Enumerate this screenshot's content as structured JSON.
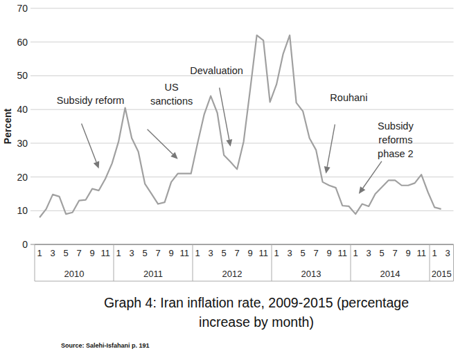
{
  "chart_data": {
    "type": "line",
    "title": [
      "Graph 4: Iran inflation rate, 2009-2015 (percentage",
      "increase by month)"
    ],
    "source": "Source: Salehi-Isfahani p. 191",
    "y_label": "Percent",
    "categories": [
      "1",
      null,
      "3",
      null,
      "5",
      null,
      "7",
      null,
      "9",
      null,
      "11",
      null,
      "1",
      null,
      "3",
      null,
      "5",
      null,
      "7",
      null,
      "9",
      null,
      "11",
      null,
      "1",
      null,
      "3",
      null,
      "5",
      null,
      "7",
      null,
      "9",
      null,
      "11",
      null,
      "1",
      null,
      "3",
      null,
      "5",
      null,
      "7",
      null,
      "9",
      null,
      "11",
      null,
      "1",
      null,
      "3",
      null,
      "5",
      null,
      "7",
      null,
      "9",
      null,
      "11",
      null,
      "1",
      null,
      "3"
    ],
    "year_groups": [
      {
        "label": "2010",
        "count": 12
      },
      {
        "label": "2011",
        "count": 12
      },
      {
        "label": "2012",
        "count": 12
      },
      {
        "label": "2013",
        "count": 12
      },
      {
        "label": "2014",
        "count": 12
      },
      {
        "label": "2015",
        "count": 3
      }
    ],
    "values": [
      8,
      10.5,
      14.8,
      14.2,
      9,
      9.5,
      13,
      13.2,
      16.5,
      16,
      19.5,
      24,
      30.5,
      40.5,
      31.5,
      27.5,
      18,
      15,
      12,
      12.5,
      18.5,
      21,
      21,
      21,
      30,
      38.5,
      44,
      39,
      26.5,
      24.5,
      22.3,
      30.5,
      46,
      62,
      60.5,
      42.2,
      47.5,
      56.5,
      62,
      42,
      39.5,
      31.5,
      28,
      18.5,
      17.5,
      16.8,
      11.5,
      11.3,
      9,
      12,
      11.3,
      15,
      17,
      19,
      19,
      17.5,
      17.5,
      18.2,
      20.7,
      15.5,
      11,
      10.5,
      null
    ],
    "color": "#a0a0a0",
    "ylim": [
      0,
      70
    ],
    "yticks": [
      0,
      10,
      20,
      30,
      40,
      50,
      60,
      70
    ],
    "grid": true,
    "annotations": [
      {
        "text": [
          "Subsidy reform"
        ],
        "x": 9,
        "y": 22.5
      },
      {
        "text": [
          "US",
          "sanctions"
        ],
        "x": 21,
        "y": 25.3
      },
      {
        "text": [
          "Devaluation"
        ],
        "x": 29,
        "y": 29
      },
      {
        "text": [
          "Rouhani"
        ],
        "x": 43.5,
        "y": 21
      },
      {
        "text": [
          "Subsidy",
          "reforms",
          "phase 2"
        ],
        "x": 48.5,
        "y": 15
      }
    ]
  }
}
